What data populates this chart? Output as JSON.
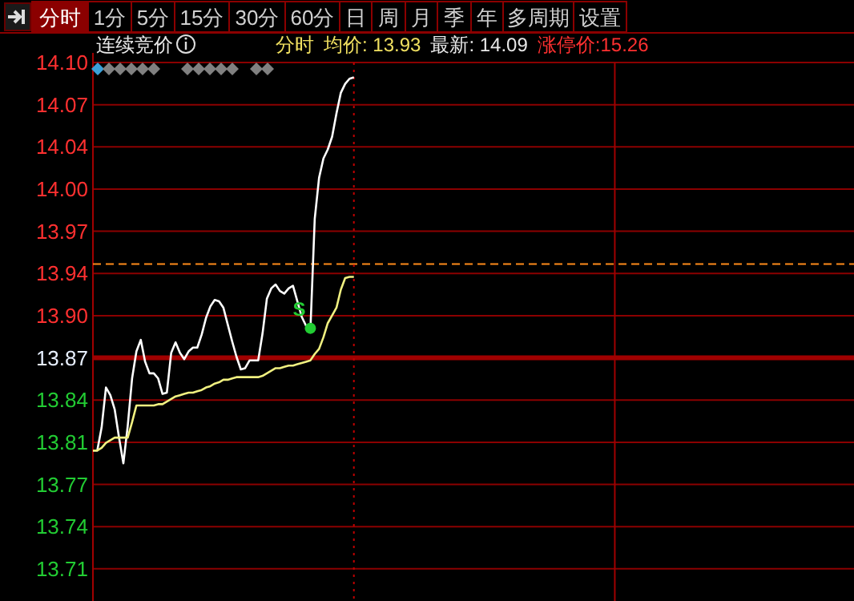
{
  "chart_data": {
    "type": "line",
    "title": "连续竞价",
    "annotations": [
      "分时",
      "1分",
      "5分",
      "15分",
      "30分",
      "60分",
      "日",
      "周",
      "月",
      "季",
      "年",
      "多周期",
      "设置",
      "分时",
      "均价: 13.93",
      "最新: 14.09",
      "涨停价:15.26",
      "S"
    ],
    "categories": [
      null,
      null,
      null,
      null,
      null,
      null,
      null,
      null,
      null,
      null,
      null,
      null,
      null,
      null,
      null,
      null,
      null,
      null,
      null,
      null,
      null,
      null,
      null,
      null,
      null,
      null,
      null,
      null,
      null,
      null,
      null,
      null,
      null,
      null,
      null,
      null,
      null,
      null,
      null,
      null,
      null,
      null,
      null,
      null,
      null,
      null,
      null,
      null,
      null,
      null,
      null,
      null,
      null,
      null,
      null,
      null,
      null,
      null,
      null,
      null,
      null,
      null,
      null,
      null,
      null,
      null,
      null,
      null,
      null,
      null,
      null,
      null,
      null,
      null,
      null,
      null,
      null,
      null,
      null,
      null,
      null,
      null,
      null,
      null,
      null,
      null,
      null,
      null,
      null,
      null,
      null,
      null,
      null,
      null,
      null,
      null,
      null,
      null,
      null,
      null,
      null,
      null,
      null,
      null,
      null,
      null,
      null,
      null,
      null,
      null,
      null,
      null,
      null,
      null,
      null,
      null,
      null,
      null,
      null,
      null,
      null,
      null,
      null,
      null,
      null,
      null,
      null,
      null,
      null,
      null,
      null,
      null,
      null,
      null,
      null,
      null,
      null,
      null,
      null,
      null,
      null,
      null,
      null,
      null,
      null,
      null,
      null,
      null,
      null,
      null,
      null,
      null,
      null,
      null,
      null,
      null,
      null,
      null,
      null,
      null,
      null,
      null,
      null,
      null,
      null,
      null,
      null,
      null,
      null,
      null,
      null,
      null,
      null,
      null,
      null,
      null
    ],
    "ylim": [
      13.683,
      14.1016
    ],
    "yticks": [
      {
        "value": 14.1016,
        "label": "14.10"
      },
      {
        "value": 14.0688,
        "label": "14.07"
      },
      {
        "value": 14.036,
        "label": "14.04"
      },
      {
        "value": 14.0032,
        "label": "14.00"
      },
      {
        "value": 13.9704,
        "label": "13.97"
      },
      {
        "value": 13.9376,
        "label": "13.94"
      },
      {
        "value": 13.9048,
        "label": "13.90"
      },
      {
        "value": 13.872,
        "label": "13.87"
      },
      {
        "value": 13.8392,
        "label": "13.84"
      },
      {
        "value": 13.8064,
        "label": "13.81"
      },
      {
        "value": 13.7736,
        "label": "13.77"
      },
      {
        "value": 13.7408,
        "label": "13.74"
      },
      {
        "value": 13.708,
        "label": "13.71"
      }
    ],
    "tick_labels": "y",
    "grid": "y",
    "ref_lines": [
      {
        "axis": "y",
        "value": 13.872,
        "color": "#a00000",
        "line_style": "solid"
      },
      {
        "axis": "y",
        "value": 13.945,
        "color": "#ff8c1a",
        "line_style": "dashed"
      }
    ],
    "series": [
      {
        "color": "#ffffff",
        "values": [
          13.8,
          13.8,
          13.818,
          13.849,
          13.843,
          13.832,
          13.81,
          13.79,
          13.819,
          13.856,
          13.877,
          13.886,
          13.869,
          13.86,
          13.86,
          13.856,
          13.844,
          13.845,
          13.876,
          13.884,
          13.876,
          13.871,
          13.877,
          13.88,
          13.88,
          13.89,
          13.903,
          13.912,
          13.917,
          13.916,
          13.911,
          13.898,
          13.885,
          13.873,
          13.863,
          13.864,
          13.87,
          13.87,
          13.87,
          13.891,
          13.918,
          13.926,
          13.929,
          13.924,
          13.922,
          13.926,
          13.928,
          13.916,
          13.904,
          13.897,
          13.893,
          13.98,
          14.012,
          14.027,
          14.034,
          14.044,
          14.062,
          14.078,
          14.085,
          14.089,
          14.09,
          null,
          null,
          null,
          null,
          null,
          null,
          null,
          null,
          null,
          null,
          null,
          null,
          null,
          null,
          null,
          null,
          null,
          null,
          null,
          null,
          null,
          null,
          null,
          null,
          null,
          null,
          null,
          null,
          null,
          null,
          null,
          null,
          null,
          null,
          null,
          null,
          null,
          null,
          null,
          null,
          null,
          null,
          null,
          null,
          null,
          null,
          null,
          null,
          null,
          null,
          null,
          null,
          null,
          null,
          null,
          null,
          null,
          null,
          null,
          null,
          null,
          null,
          null,
          null,
          null,
          null,
          null,
          null,
          null,
          null,
          null,
          null,
          null,
          null,
          null,
          null,
          null,
          null,
          null,
          null,
          null,
          null,
          null,
          null,
          null,
          null,
          null,
          null,
          null,
          null,
          null,
          null,
          null,
          null,
          null,
          null,
          null,
          null,
          null,
          null,
          null,
          null,
          null,
          null,
          null,
          null,
          null,
          null,
          null,
          null,
          null,
          null,
          null,
          null,
          null
        ]
      },
      {
        "color": "#f0f080",
        "values": [
          13.8,
          13.8,
          13.802,
          13.806,
          13.808,
          13.81,
          13.81,
          13.81,
          13.81,
          13.822,
          13.835,
          13.835,
          13.835,
          13.835,
          13.835,
          13.836,
          13.836,
          13.838,
          13.84,
          13.842,
          13.843,
          13.844,
          13.845,
          13.845,
          13.846,
          13.847,
          13.849,
          13.85,
          13.852,
          13.853,
          13.855,
          13.855,
          13.856,
          13.857,
          13.857,
          13.857,
          13.857,
          13.857,
          13.857,
          13.858,
          13.86,
          13.862,
          13.864,
          13.864,
          13.865,
          13.866,
          13.866,
          13.867,
          13.868,
          13.869,
          13.87,
          13.875,
          13.879,
          13.888,
          13.899,
          13.905,
          13.911,
          13.925,
          13.934,
          13.935,
          13.935,
          null,
          null,
          null,
          null,
          null,
          null,
          null,
          null,
          null,
          null,
          null,
          null,
          null,
          null,
          null,
          null,
          null,
          null,
          null,
          null,
          null,
          null,
          null,
          null,
          null,
          null,
          null,
          null,
          null,
          null,
          null,
          null,
          null,
          null,
          null,
          null,
          null,
          null,
          null,
          null,
          null,
          null,
          null,
          null,
          null,
          null,
          null,
          null,
          null,
          null,
          null,
          null,
          null,
          null,
          null,
          null,
          null,
          null,
          null,
          null,
          null,
          null,
          null,
          null,
          null,
          null,
          null,
          null,
          null,
          null,
          null,
          null,
          null,
          null,
          null,
          null,
          null,
          null,
          null,
          null,
          null,
          null,
          null,
          null,
          null,
          null,
          null,
          null,
          null,
          null,
          null,
          null,
          null,
          null,
          null,
          null,
          null,
          null,
          null,
          null,
          null,
          null,
          null,
          null,
          null,
          null,
          null,
          null,
          null,
          null,
          null,
          null,
          null,
          null,
          null
        ]
      },
      {
        "type": "scatter",
        "color": "#22cc33",
        "values": [
          null,
          null,
          null,
          null,
          null,
          null,
          null,
          null,
          null,
          null,
          null,
          null,
          null,
          null,
          null,
          null,
          null,
          null,
          null,
          null,
          null,
          null,
          null,
          null,
          null,
          null,
          null,
          null,
          null,
          null,
          null,
          null,
          null,
          null,
          null,
          null,
          null,
          null,
          null,
          null,
          null,
          null,
          null,
          null,
          null,
          null,
          null,
          null,
          null,
          null,
          13.895,
          null,
          null,
          null,
          null,
          null,
          null,
          null,
          null,
          null,
          null,
          null,
          null,
          null,
          null,
          null,
          null,
          null,
          null,
          null,
          null,
          null,
          null,
          null,
          null,
          null,
          null,
          null,
          null,
          null,
          null,
          null,
          null,
          null,
          null,
          null,
          null,
          null,
          null,
          null,
          null,
          null,
          null,
          null,
          null,
          null,
          null,
          null,
          null,
          null,
          null,
          null,
          null,
          null,
          null,
          null,
          null,
          null,
          null,
          null,
          null,
          null,
          null,
          null,
          null,
          null,
          null,
          null,
          null,
          null,
          null,
          null,
          null,
          null,
          null,
          null,
          null,
          null,
          null,
          null,
          null,
          null,
          null,
          null,
          null,
          null,
          null,
          null,
          null,
          null,
          null,
          null,
          null,
          null,
          null,
          null,
          null,
          null,
          null,
          null,
          null,
          null,
          null,
          null,
          null,
          null,
          null,
          null,
          null,
          null,
          null,
          null,
          null,
          null,
          null,
          null,
          null,
          null,
          null,
          null,
          null,
          null,
          null,
          null,
          null,
          null
        ]
      }
    ]
  }
}
